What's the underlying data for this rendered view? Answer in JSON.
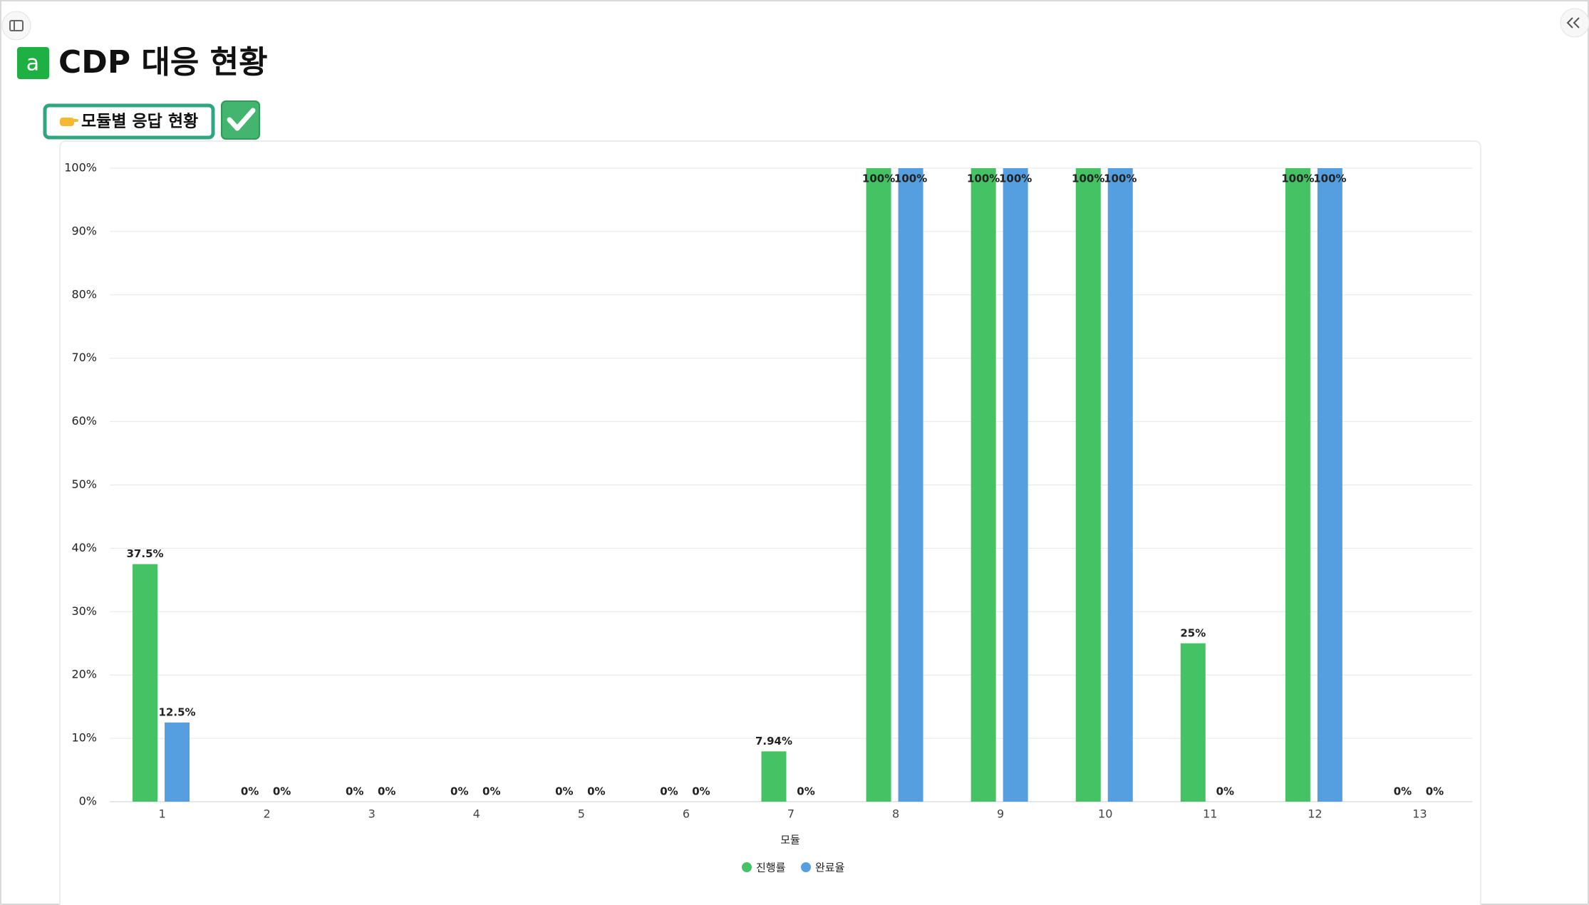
{
  "header": {
    "title": "CDP 대응 현황"
  },
  "callout": {
    "label": "모듈별 응답 현황"
  },
  "chart_data": {
    "type": "bar",
    "categories": [
      "1",
      "2",
      "3",
      "4",
      "5",
      "6",
      "7",
      "8",
      "9",
      "10",
      "11",
      "12",
      "13"
    ],
    "series": [
      {
        "name": "진행률",
        "color": "#45c263",
        "values": [
          37.5,
          0,
          0,
          0,
          0,
          0,
          7.94,
          100,
          100,
          100,
          25,
          100,
          0
        ],
        "value_labels": [
          "37.5%",
          "0%",
          "0%",
          "0%",
          "0%",
          "0%",
          "7.94%",
          "100%",
          "100%",
          "100%",
          "25%",
          "100%",
          "0%"
        ]
      },
      {
        "name": "완료율",
        "color": "#559ee0",
        "values": [
          12.5,
          0,
          0,
          0,
          0,
          0,
          0,
          100,
          100,
          100,
          0,
          100,
          0
        ],
        "value_labels": [
          "12.5%",
          "0%",
          "0%",
          "0%",
          "0%",
          "0%",
          "0%",
          "100%",
          "100%",
          "100%",
          "0%",
          "100%",
          "0%"
        ]
      }
    ],
    "x_label": "모듈",
    "ylim": [
      0,
      100
    ],
    "yticks": [
      {
        "value": 0,
        "label": "0%"
      },
      {
        "value": 10,
        "label": "10%"
      },
      {
        "value": 20,
        "label": "20%"
      },
      {
        "value": 30,
        "label": "30%"
      },
      {
        "value": 40,
        "label": "40%"
      },
      {
        "value": 50,
        "label": "50%"
      },
      {
        "value": 60,
        "label": "60%"
      },
      {
        "value": 70,
        "label": "70%"
      },
      {
        "value": 80,
        "label": "80%"
      },
      {
        "value": 90,
        "label": "90%"
      },
      {
        "value": 100,
        "label": "100%"
      }
    ],
    "grid": true,
    "legend": "bottom"
  }
}
